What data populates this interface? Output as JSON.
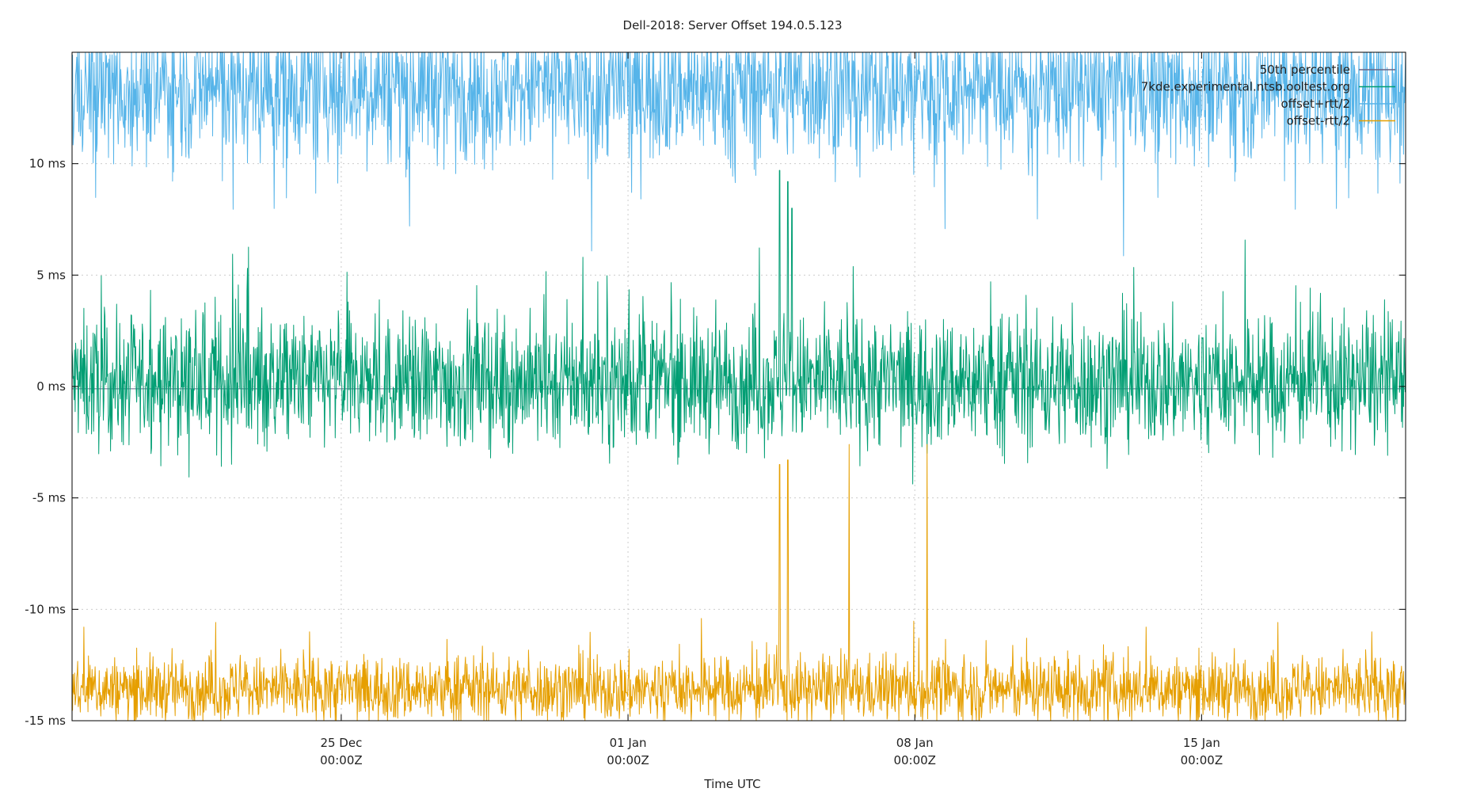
{
  "chart_data": {
    "type": "line",
    "title": "Dell-2018: Server Offset 194.0.5.123",
    "xlabel": "Time UTC",
    "ylabel": "",
    "x_unit": "days",
    "x_range": [
      -6.57,
      25.98
    ],
    "ylim": [
      -15,
      15
    ],
    "y_ticks": [
      {
        "value": 10,
        "label": "10 ms"
      },
      {
        "value": 5,
        "label": "5 ms"
      },
      {
        "value": 0,
        "label": "0 ms"
      },
      {
        "value": -5,
        "label": "-5 ms"
      },
      {
        "value": -10,
        "label": "-10 ms"
      },
      {
        "value": -15,
        "label": "-15 ms"
      }
    ],
    "x_ticks": [
      {
        "value": 0,
        "date": "25 Dec",
        "time": "00:00Z"
      },
      {
        "value": 7,
        "date": "01 Jan",
        "time": "00:00Z"
      },
      {
        "value": 14,
        "date": "08 Jan",
        "time": "00:00Z"
      },
      {
        "value": 21,
        "date": "15 Jan",
        "time": "00:00Z"
      }
    ],
    "grid": true,
    "legend_position": "top-right",
    "reference_line": {
      "name": "50th percentile",
      "value": -0.1
    },
    "series": [
      {
        "name": "50th percentile",
        "color": "#666688",
        "kind": "constant",
        "value": -0.1
      },
      {
        "name": "7kde.experimental.ntsb.ooltest.org",
        "color": "#009e73",
        "kind": "noise",
        "center": 0.2,
        "spread": 1.8,
        "spikes": [
          {
            "x": 10.7,
            "value": 9.7
          },
          {
            "x": 10.9,
            "value": 9.2
          },
          {
            "x": 11.0,
            "value": 8.0
          },
          {
            "x": 14.3,
            "value": -3.0
          }
        ]
      },
      {
        "name": "offset+rtt/2",
        "color": "#56b4e9",
        "kind": "noise",
        "center": 13.5,
        "spread": 2.0
      },
      {
        "name": "offset-rtt/2",
        "color": "#e69f00",
        "kind": "noise",
        "center": -13.6,
        "spread": 0.9,
        "spikes": [
          {
            "x": 10.7,
            "value": -3.5
          },
          {
            "x": 10.9,
            "value": -3.3
          },
          {
            "x": 12.4,
            "value": -2.6
          },
          {
            "x": 14.3,
            "value": -2.6
          }
        ]
      }
    ]
  }
}
